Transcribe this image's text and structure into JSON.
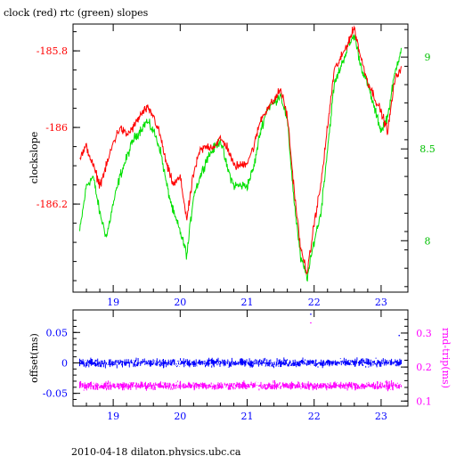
{
  "title": "clock (red) rtc (green) slopes",
  "footer": "2010-04-18 dilaton.physics.ubc.ca",
  "colors": {
    "clock": "#ff0000",
    "rtc": "#00e000",
    "offset": "#0000ff",
    "rtt": "#ff00ff",
    "axis": "#000000"
  },
  "chart_data": [
    {
      "type": "line",
      "ylabel": "clockslope",
      "ylabel_right": "",
      "xlim": [
        18.4,
        23.4
      ],
      "ylim": [
        -186.43,
        -185.73
      ],
      "ylim_right": [
        7.72,
        9.18
      ],
      "xticks": [
        19,
        20,
        21,
        22,
        23
      ],
      "yticks_left": [
        -185.8,
        -186,
        -186.2
      ],
      "yticks_left_labels": [
        "-185.8",
        "-186",
        "-186.2"
      ],
      "yticks_right": [
        9,
        8.5,
        8
      ],
      "yticks_right_labels": [
        "9",
        "8.5",
        "8"
      ],
      "series": [
        {
          "color_key": "clock",
          "axis": "left",
          "x": [
            18.5,
            18.6,
            18.7,
            18.8,
            18.9,
            19.0,
            19.1,
            19.2,
            19.3,
            19.4,
            19.5,
            19.6,
            19.7,
            19.8,
            19.9,
            20.0,
            20.1,
            20.2,
            20.3,
            20.4,
            20.5,
            20.6,
            20.7,
            20.8,
            20.9,
            21.0,
            21.1,
            21.2,
            21.3,
            21.4,
            21.5,
            21.6,
            21.7,
            21.8,
            21.9,
            22.0,
            22.1,
            22.2,
            22.3,
            22.4,
            22.5,
            22.6,
            22.7,
            22.8,
            22.9,
            23.0,
            23.1,
            23.2,
            23.3
          ],
          "y": [
            -186.08,
            -186.05,
            -186.1,
            -186.15,
            -186.1,
            -186.04,
            -186.0,
            -186.02,
            -186.0,
            -185.97,
            -185.95,
            -185.97,
            -186.02,
            -186.1,
            -186.15,
            -186.13,
            -186.24,
            -186.12,
            -186.06,
            -186.05,
            -186.05,
            -186.03,
            -186.05,
            -186.1,
            -186.1,
            -186.09,
            -186.05,
            -185.98,
            -185.95,
            -185.93,
            -185.9,
            -185.97,
            -186.16,
            -186.32,
            -186.38,
            -186.25,
            -186.15,
            -186.0,
            -185.85,
            -185.82,
            -185.78,
            -185.74,
            -185.82,
            -185.88,
            -185.92,
            -185.96,
            -186.01,
            -185.88,
            -185.84
          ]
        },
        {
          "color_key": "rtc",
          "axis": "right",
          "x": [
            18.5,
            18.6,
            18.7,
            18.8,
            18.9,
            19.0,
            19.1,
            19.2,
            19.3,
            19.4,
            19.5,
            19.6,
            19.7,
            19.8,
            19.9,
            20.0,
            20.1,
            20.2,
            20.3,
            20.4,
            20.5,
            20.6,
            20.7,
            20.8,
            20.9,
            21.0,
            21.1,
            21.2,
            21.3,
            21.4,
            21.5,
            21.6,
            21.7,
            21.8,
            21.9,
            22.0,
            22.1,
            22.2,
            22.3,
            22.4,
            22.5,
            22.6,
            22.7,
            22.8,
            22.9,
            23.0,
            23.1,
            23.2,
            23.3
          ],
          "y": [
            8.05,
            8.3,
            8.35,
            8.15,
            8.02,
            8.2,
            8.35,
            8.45,
            8.55,
            8.6,
            8.65,
            8.6,
            8.5,
            8.3,
            8.15,
            8.05,
            7.92,
            8.25,
            8.35,
            8.45,
            8.5,
            8.55,
            8.4,
            8.3,
            8.3,
            8.3,
            8.4,
            8.6,
            8.72,
            8.75,
            8.8,
            8.65,
            8.22,
            7.9,
            7.8,
            8.0,
            8.15,
            8.5,
            8.85,
            8.95,
            9.05,
            9.12,
            8.95,
            8.85,
            8.72,
            8.6,
            8.68,
            8.9,
            9.05
          ]
        }
      ]
    },
    {
      "type": "scatter",
      "ylabel": "offset(ms)",
      "ylabel_right": "rnd-trip(ms)",
      "xlim": [
        18.4,
        23.4
      ],
      "ylim": [
        -0.071,
        0.087
      ],
      "ylim_right": [
        0.085,
        0.368
      ],
      "xticks": [
        19,
        20,
        21,
        22,
        23
      ],
      "xtick_labels": [
        "19",
        "20",
        "21",
        "22",
        "23"
      ],
      "yticks_left": [
        0.05,
        0,
        -0.05
      ],
      "yticks_left_labels": [
        "0.05",
        "0",
        "-0.05"
      ],
      "yticks_right": [
        0.3,
        0.2,
        0.1
      ],
      "yticks_right_labels": [
        "0.3",
        "0.2",
        "0.1"
      ],
      "series": [
        {
          "color_key": "offset",
          "axis": "left",
          "x_range": [
            18.5,
            23.3
          ],
          "y_center": 0.0,
          "y_spread": 0.008,
          "outliers": [
            [
              21.95,
              0.08
            ],
            [
              23.27,
              0.045
            ]
          ]
        },
        {
          "color_key": "rtt",
          "axis": "right",
          "x_range": [
            18.5,
            23.3
          ],
          "y_center": 0.145,
          "y_spread": 0.014,
          "outliers": [
            [
              21.95,
              0.33
            ]
          ]
        }
      ]
    }
  ]
}
